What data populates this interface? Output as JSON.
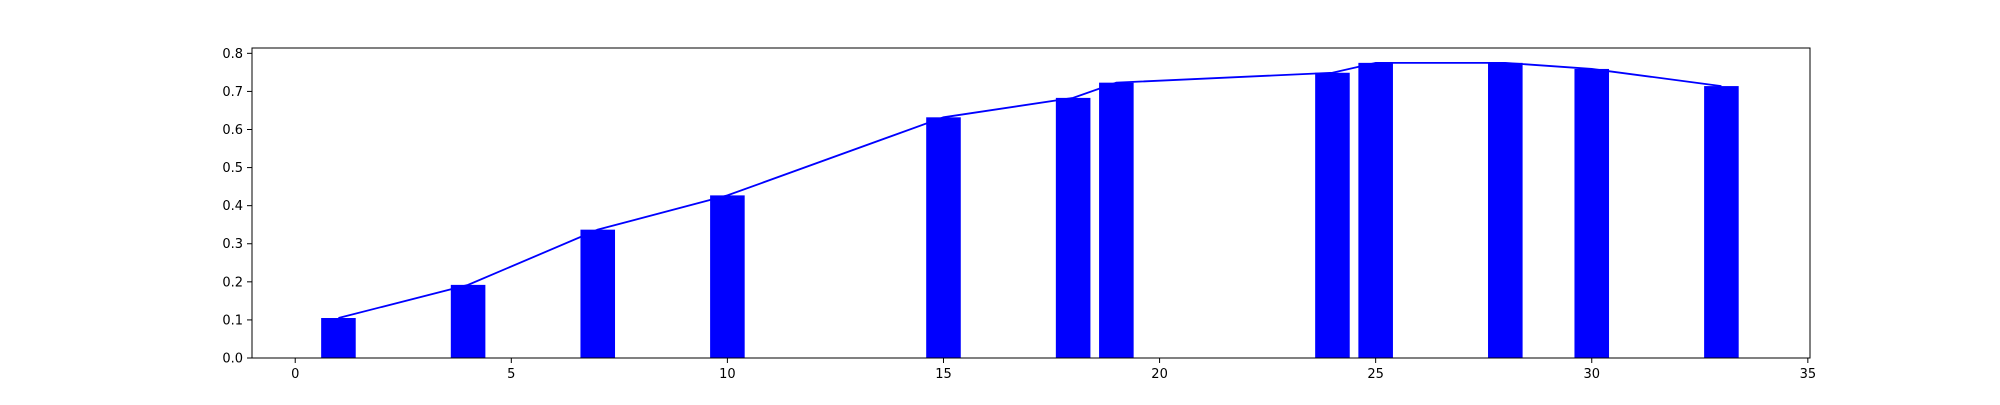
{
  "chart_data": {
    "type": "bar",
    "title": "",
    "xlabel": "",
    "ylabel": "",
    "x": [
      1,
      4,
      7,
      10,
      15,
      18,
      19,
      24,
      25,
      28,
      30,
      33
    ],
    "values": [
      0.105,
      0.192,
      0.337,
      0.427,
      0.632,
      0.683,
      0.723,
      0.749,
      0.775,
      0.775,
      0.759,
      0.714
    ],
    "line_overlay": {
      "x": [
        1,
        4,
        7,
        10,
        15,
        18,
        19,
        24,
        25,
        28,
        30,
        33
      ],
      "y": [
        0.105,
        0.192,
        0.337,
        0.427,
        0.632,
        0.683,
        0.723,
        0.749,
        0.775,
        0.775,
        0.759,
        0.714
      ]
    },
    "xlim": [
      -1,
      35.05
    ],
    "ylim": [
      0,
      0.814
    ],
    "xticks": [
      0,
      5,
      10,
      15,
      20,
      25,
      30,
      35
    ],
    "yticks": [
      0.0,
      0.1,
      0.2,
      0.3,
      0.4,
      0.5,
      0.6,
      0.7,
      0.8
    ],
    "xtick_labels": [
      "0",
      "5",
      "10",
      "15",
      "20",
      "25",
      "30",
      "35"
    ],
    "ytick_labels": [
      "0.0",
      "0.1",
      "0.2",
      "0.3",
      "0.4",
      "0.5",
      "0.6",
      "0.7",
      "0.8"
    ],
    "bar_width": 0.8,
    "grid": false,
    "colors": {
      "bar": "#0000ff",
      "line": "#0000ff",
      "axes": "#000000"
    }
  }
}
